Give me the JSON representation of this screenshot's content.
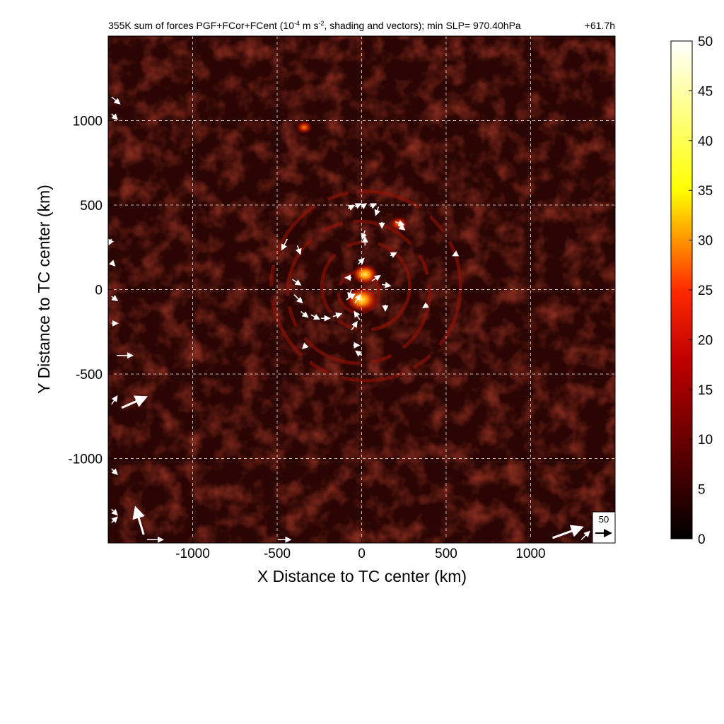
{
  "chart_data": {
    "type": "heatmap",
    "title": "355K sum of forces PGF+FCor+FCent (10",
    "title_exp1": "-4",
    "title_mid": " m s",
    "title_exp2": "-2",
    "title_end": ", shading and vectors); min SLP= 970.40hPa",
    "time_label": "+61.7h",
    "xlabel": "X Distance to TC center (km)",
    "ylabel": "Y Distance to TC center (km)",
    "xlim": [
      -1500,
      1500
    ],
    "ylim": [
      -1500,
      1500
    ],
    "xticks": [
      -1000,
      -500,
      0,
      500,
      1000
    ],
    "yticks": [
      -1000,
      -500,
      0,
      500,
      1000
    ],
    "grid": true,
    "colorbar": {
      "min": 0,
      "max": 50,
      "ticks": [
        0,
        5,
        10,
        15,
        20,
        25,
        30,
        35,
        40,
        45,
        50
      ],
      "colormap": "hot"
    },
    "reference_vector": {
      "label": "50",
      "magnitude": 50
    },
    "features": {
      "max_value_approx": 40,
      "hotspots": [
        {
          "x": 0,
          "y": -60,
          "value": 40
        },
        {
          "x": 20,
          "y": 90,
          "value": 30
        },
        {
          "x": 220,
          "y": 390,
          "value": 18
        },
        {
          "x": -340,
          "y": 960,
          "value": 14
        }
      ],
      "spiral_rings_km": [
        120,
        260,
        420,
        560
      ]
    }
  },
  "colors": {
    "background": "#ffffff",
    "field_base": "#2a0503",
    "vector": "#ffffff",
    "grid": "#ffffff"
  }
}
